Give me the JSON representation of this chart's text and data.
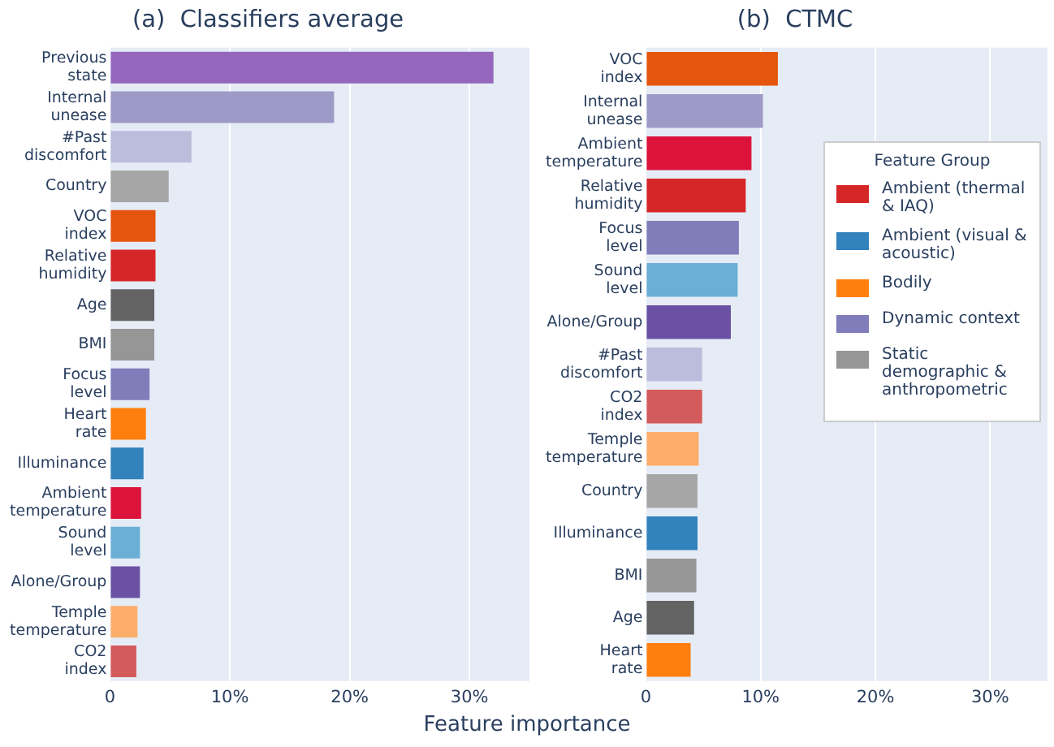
{
  "chart_data": [
    {
      "type": "bar",
      "orientation": "horizontal",
      "title": "(a)  Classifiers average",
      "xlabel": "Feature importance",
      "categories": [
        "Previous state",
        "Internal unease",
        "#Past discomfort",
        "Country",
        "VOC index",
        "Relative humidity",
        "Age",
        "BMI",
        "Focus level",
        "Heart rate",
        "Illuminance",
        "Ambient temperature",
        "Sound level",
        "Alone/Group",
        "Temple temperature",
        "CO2 index"
      ],
      "series": [
        {
          "values": [
            null,
            null,
            null,
            null,
            3.8,
            3.8,
            null,
            null,
            null,
            null,
            null,
            2.6,
            null,
            null,
            null,
            2.2
          ],
          "colors": [
            null,
            null,
            null,
            null,
            "#e6550d",
            "#d62728",
            null,
            null,
            null,
            null,
            null,
            "#dc143c",
            null,
            null,
            null,
            "#d35b5b"
          ]
        },
        {
          "values": [
            null,
            null,
            null,
            null,
            null,
            null,
            null,
            null,
            null,
            null,
            2.8,
            null,
            2.5,
            null,
            null,
            null
          ],
          "colors": [
            null,
            null,
            null,
            null,
            null,
            null,
            null,
            null,
            null,
            null,
            "#3182bd",
            null,
            "#6baed6",
            null,
            null,
            null
          ]
        },
        {
          "values": [
            null,
            null,
            null,
            null,
            null,
            null,
            null,
            null,
            null,
            3.0,
            null,
            null,
            null,
            null,
            2.3,
            null
          ],
          "colors": [
            null,
            null,
            null,
            null,
            null,
            null,
            null,
            null,
            null,
            "#ff7f0e",
            null,
            null,
            null,
            null,
            "#fdae6b",
            null
          ]
        },
        {
          "values": [
            32.0,
            18.7,
            6.8,
            null,
            null,
            null,
            null,
            null,
            3.3,
            null,
            null,
            null,
            null,
            2.5,
            null,
            null
          ],
          "colors": [
            "#9467bd",
            "#9e9ac8",
            "#bcbddc",
            null,
            null,
            null,
            null,
            null,
            "#807dba",
            null,
            null,
            null,
            null,
            "#6a51a3",
            null,
            null
          ]
        },
        {
          "values": [
            null,
            null,
            null,
            4.9,
            null,
            null,
            3.7,
            3.7,
            null,
            null,
            null,
            null,
            null,
            null,
            null,
            null
          ],
          "colors": [
            null,
            null,
            null,
            "#a6a6a6",
            null,
            null,
            "#636363",
            "#969696",
            null,
            null,
            null,
            null,
            null,
            null,
            null,
            null
          ]
        }
      ],
      "xlim": [
        0,
        35
      ],
      "xticks": [
        0,
        {
          "value": 10,
          "label": "10%"
        },
        {
          "value": 20,
          "label": "20%"
        },
        {
          "value": 30,
          "label": "30%"
        }
      ],
      "grid": "x",
      "legend": false
    },
    {
      "type": "bar",
      "orientation": "horizontal",
      "title": "(b)  CTMC",
      "legend_title": "Feature Group",
      "categories": [
        "VOC index",
        "Internal unease",
        "Ambient temperature",
        "Relative humidity",
        "Focus level",
        "Sound level",
        "Alone/Group",
        "#Past discomfort",
        "CO2 index",
        "Temple temperature",
        "Country",
        "Illuminance",
        "BMI",
        "Age",
        "Heart rate"
      ],
      "series": [
        {
          "name": "Ambient (thermal & IAQ)",
          "color": "#d62728",
          "values": [
            11.5,
            null,
            9.2,
            8.7,
            null,
            null,
            null,
            null,
            4.9,
            null,
            null,
            null,
            null,
            null,
            null
          ],
          "colors": [
            "#e6550d",
            null,
            "#dc143c",
            "#d62728",
            null,
            null,
            null,
            null,
            "#d35b5b",
            null,
            null,
            null,
            null,
            null,
            null
          ]
        },
        {
          "name": "Ambient (visual & acoustic)",
          "color": "#3182bd",
          "values": [
            null,
            null,
            null,
            null,
            null,
            8.0,
            null,
            null,
            null,
            null,
            null,
            4.5,
            null,
            null,
            null
          ],
          "colors": [
            null,
            null,
            null,
            null,
            null,
            "#6baed6",
            null,
            null,
            null,
            null,
            null,
            "#3182bd",
            null,
            null,
            null
          ]
        },
        {
          "name": "Bodily",
          "color": "#ff7f0e",
          "values": [
            null,
            null,
            null,
            null,
            null,
            null,
            null,
            null,
            null,
            4.6,
            null,
            null,
            null,
            null,
            3.9
          ],
          "colors": [
            null,
            null,
            null,
            null,
            null,
            null,
            null,
            null,
            null,
            "#fdae6b",
            null,
            null,
            null,
            null,
            "#ff7f0e"
          ]
        },
        {
          "name": "Dynamic context",
          "color": "#807dba",
          "values": [
            null,
            10.2,
            null,
            null,
            8.1,
            null,
            7.4,
            4.9,
            null,
            null,
            null,
            null,
            null,
            null,
            null
          ],
          "colors": [
            null,
            "#9e9ac8",
            null,
            null,
            "#807dba",
            null,
            "#6a51a3",
            "#bcbddc",
            null,
            null,
            null,
            null,
            null,
            null,
            null
          ]
        },
        {
          "name": "Static demographic & anthropometric",
          "color": "#969696",
          "values": [
            null,
            null,
            null,
            null,
            null,
            null,
            null,
            null,
            null,
            null,
            4.5,
            null,
            4.4,
            4.2,
            null
          ],
          "colors": [
            null,
            null,
            null,
            null,
            null,
            null,
            null,
            null,
            null,
            null,
            "#a6a6a6",
            null,
            "#969696",
            "#636363",
            null
          ]
        }
      ],
      "xlim": [
        0,
        35
      ],
      "xticks": [
        0,
        {
          "value": 10,
          "label": "10%"
        },
        {
          "value": 20,
          "label": "20%"
        },
        {
          "value": 30,
          "label": "30%"
        }
      ],
      "grid": "x",
      "legend": "top right"
    }
  ]
}
